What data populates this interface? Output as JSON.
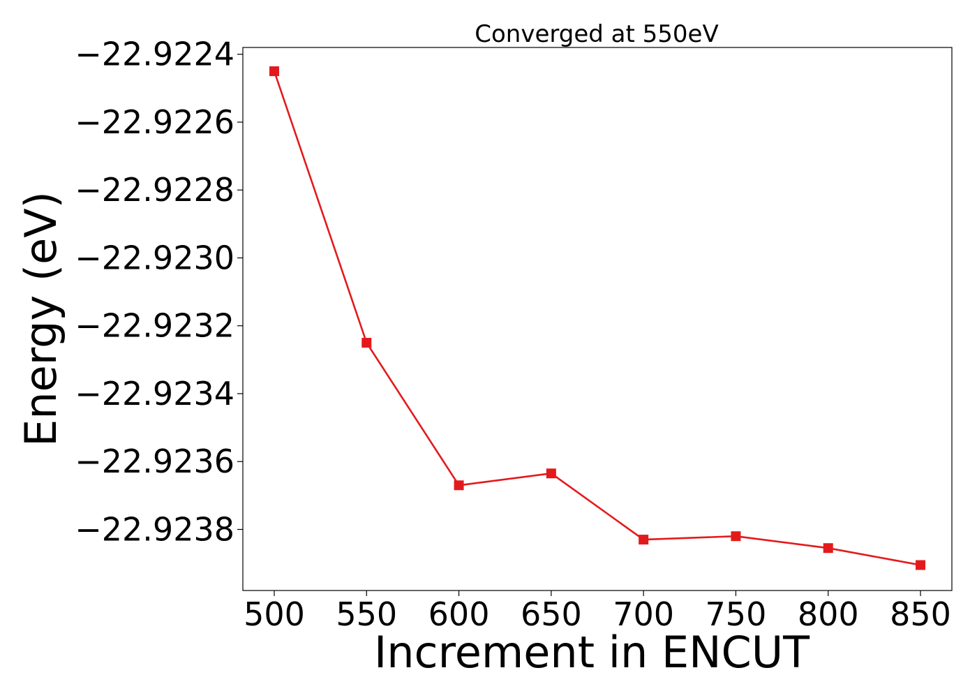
{
  "chart_data": {
    "type": "line",
    "title": "Converged at 550eV",
    "xlabel": "Increment in ENCUT",
    "ylabel": "Energy (eV)",
    "x": [
      500,
      550,
      600,
      650,
      700,
      750,
      800,
      850
    ],
    "series": [
      {
        "values": [
          -22.92245,
          -22.92325,
          -22.92367,
          -22.923635,
          -22.92383,
          -22.92382,
          -22.923855,
          -22.923905
        ],
        "color": "#e31a1c",
        "marker": "square"
      }
    ],
    "xticks": [
      500,
      550,
      600,
      650,
      700,
      750,
      800,
      850
    ],
    "xtick_labels": [
      "500",
      "550",
      "600",
      "650",
      "700",
      "750",
      "800",
      "850"
    ],
    "yticks": [
      -22.9224,
      -22.9226,
      -22.9228,
      -22.923,
      -22.9232,
      -22.9234,
      -22.9236,
      -22.9238
    ],
    "ytick_labels": [
      "−22.9224",
      "−22.9226",
      "−22.9228",
      "−22.9230",
      "−22.9232",
      "−22.9234",
      "−22.9236",
      "−22.9238"
    ],
    "xlim": [
      483,
      867
    ],
    "ylim": [
      -22.92398,
      -22.92238
    ],
    "grid": false,
    "legend": "none"
  }
}
